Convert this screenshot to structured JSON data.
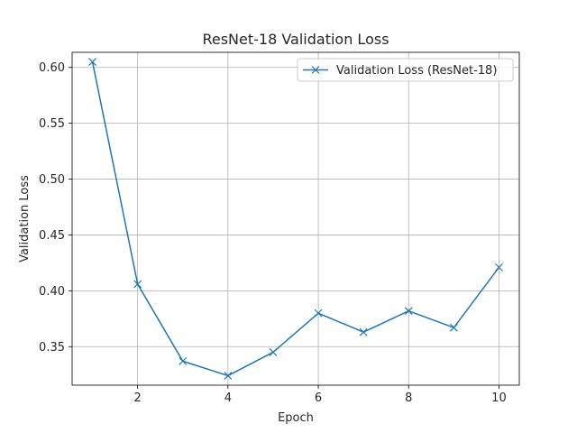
{
  "chart_data": {
    "type": "line",
    "title": "ResNet-18 Validation Loss",
    "xlabel": "Epoch",
    "ylabel": "Validation Loss",
    "x": [
      1,
      2,
      3,
      4,
      5,
      6,
      7,
      8,
      9,
      10
    ],
    "series": [
      {
        "name": "Validation Loss (ResNet-18)",
        "values": [
          0.605,
          0.406,
          0.337,
          0.324,
          0.345,
          0.38,
          0.363,
          0.382,
          0.367,
          0.421
        ],
        "color": "#1f77b4",
        "marker": "x"
      }
    ],
    "xlim": [
      0.55,
      10.45
    ],
    "ylim": [
      0.3155,
      0.6135
    ],
    "xticks": [
      2,
      4,
      6,
      8,
      10
    ],
    "xtick_labels": [
      "2",
      "4",
      "6",
      "8",
      "10"
    ],
    "yticks": [
      0.35,
      0.4,
      0.45,
      0.5,
      0.55,
      0.6
    ],
    "ytick_labels": [
      "0.35",
      "0.40",
      "0.45",
      "0.50",
      "0.55",
      "0.60"
    ],
    "grid": true,
    "legend_position": "top-right"
  }
}
